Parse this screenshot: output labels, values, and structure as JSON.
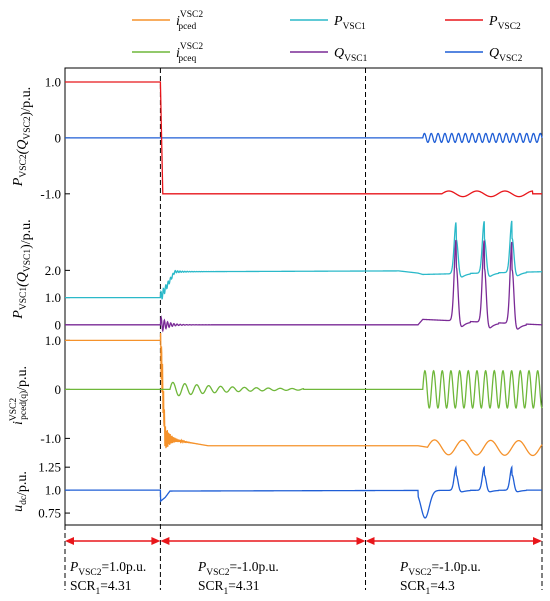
{
  "chart_data": {
    "type": "line",
    "legend": {
      "placement": "top",
      "entries": [
        {
          "key": "ipced",
          "main": "i",
          "sub": "pced",
          "sup": "VSC2",
          "color": "#F5922B"
        },
        {
          "key": "pvsc1",
          "main": "P",
          "sub": "VSC1",
          "sup": "",
          "color": "#2BB9C9"
        },
        {
          "key": "pvsc2",
          "main": "P",
          "sub": "VSC2",
          "sup": "",
          "color": "#E8161B"
        },
        {
          "key": "ipceq",
          "main": "i",
          "sub": "pceq",
          "sup": "VSC2",
          "color": "#6FB73A"
        },
        {
          "key": "qvsc1",
          "main": "Q",
          "sub": "VSC1",
          "sup": "",
          "color": "#7A2A96"
        },
        {
          "key": "qvsc2",
          "main": "Q",
          "sub": "VSC2",
          "sup": "",
          "color": "#1F5ED6"
        }
      ]
    },
    "x": {
      "range": [
        0,
        1
      ],
      "grid": false,
      "event_lines": [
        0.2,
        0.63
      ]
    },
    "panels": [
      {
        "id": "p1",
        "ylabel": {
          "parts": [
            [
              "P",
              "VSC2"
            ],
            [
              "(Q",
              "VSC2"
            ],
            [
              ")/p.u.",
              ""
            ]
          ]
        },
        "ylim": [
          -1.2,
          1.25
        ],
        "ticks": [
          {
            "v": 1.0,
            "label": "1.0"
          },
          {
            "v": 0.0,
            "label": "0"
          },
          {
            "v": -1.0,
            "label": "-1.0"
          }
        ],
        "series": [
          {
            "key": "qvsc2",
            "base": [
              [
                0,
                0
              ],
              [
                0.2,
                0
              ],
              [
                1,
                0
              ]
            ],
            "transients": [
              {
                "t": 0.2,
                "amp": 0.85,
                "decay": 0.012,
                "freq": 900
              }
            ],
            "periodic": {
              "t0": 0.75,
              "t1": 1.0,
              "amp": 0.08,
              "freq": 70
            }
          },
          {
            "key": "pvsc2",
            "base": [
              [
                0,
                1
              ],
              [
                0.2,
                1
              ],
              [
                0.205,
                -1
              ],
              [
                1,
                -1
              ]
            ],
            "transients": [
              {
                "t": 0.2,
                "amp": 0.9,
                "decay": 0.01,
                "freq": 900
              }
            ],
            "periodic": {
              "t0": 0.79,
              "t1": 0.98,
              "amp": 0.05,
              "freq": 17
            }
          }
        ]
      },
      {
        "id": "p2",
        "ylabel": {
          "parts": [
            [
              "P",
              "VSC1"
            ],
            [
              "(Q",
              "VSC1"
            ],
            [
              ")/p.u.",
              ""
            ]
          ]
        },
        "ylim": [
          -0.3,
          4.4
        ],
        "ticks": [
          {
            "v": 2.0,
            "label": "2.0"
          },
          {
            "v": 1.0,
            "label": "1.0"
          },
          {
            "v": 0.0,
            "label": "0"
          }
        ],
        "series": [
          {
            "key": "pvsc1",
            "base": [
              [
                0,
                1
              ],
              [
                0.2,
                1
              ],
              [
                0.23,
                1.95
              ],
              [
                0.7,
                1.98
              ],
              [
                0.74,
                1.9
              ],
              [
                0.75,
                1.85
              ],
              [
                1,
                1.95
              ]
            ],
            "spikes": [
              {
                "t": 0.82,
                "h": 1.9
              },
              {
                "t": 0.879,
                "h": 1.9
              },
              {
                "t": 0.937,
                "h": 1.9
              }
            ],
            "transients": [
              {
                "t": 0.2,
                "amp": 0.2,
                "decay": 0.02,
                "freq": 200
              }
            ]
          },
          {
            "key": "qvsc1",
            "base": [
              [
                0,
                0
              ],
              [
                0.2,
                0
              ],
              [
                0.74,
                0
              ],
              [
                0.75,
                0.2
              ],
              [
                1,
                0
              ]
            ],
            "spikes": [
              {
                "t": 0.82,
                "h": 3.0
              },
              {
                "t": 0.879,
                "h": 3.0
              },
              {
                "t": 0.937,
                "h": 3.0
              }
            ],
            "transients": [
              {
                "t": 0.2,
                "amp": 0.3,
                "decay": 0.015,
                "freq": 150
              }
            ]
          }
        ]
      },
      {
        "id": "p3",
        "ylabel": {
          "parts": [
            [
              "i",
              "pced(q)",
              "VSC2"
            ],
            [
              "/p.u.",
              ""
            ]
          ]
        },
        "ylim": [
          -1.4,
          1.15
        ],
        "ticks": [
          {
            "v": 1.0,
            "label": "1.0"
          },
          {
            "v": 0.0,
            "label": "0"
          },
          {
            "v": -1.0,
            "label": "-1.0"
          }
        ],
        "series": [
          {
            "key": "ipced",
            "base": [
              [
                0,
                1
              ],
              [
                0.2,
                1
              ],
              [
                0.21,
                -1.0
              ],
              [
                0.3,
                -1.15
              ],
              [
                0.74,
                -1.15
              ],
              [
                0.76,
                -1.18
              ],
              [
                1,
                -1.2
              ]
            ],
            "transients": [
              {
                "t": 0.2,
                "amp": 0.6,
                "decay": 0.012,
                "freq": 500
              }
            ],
            "periodic": {
              "t0": 0.76,
              "t1": 1.0,
              "amp": 0.15,
              "freq": 17
            }
          },
          {
            "key": "ipceq",
            "base": [
              [
                0,
                0
              ],
              [
                1,
                0
              ]
            ],
            "transients": [
              {
                "t": 0.2,
                "amp": 1.0,
                "decay": 0.012,
                "freq": 900
              }
            ],
            "periodic": {
              "t0": 0.75,
              "t1": 1.0,
              "amp": 0.38,
              "freq": 55
            },
            "wave": {
              "t0": 0.22,
              "t1": 0.5,
              "amp": 0.15,
              "freq": 40
            }
          }
        ]
      },
      {
        "id": "p4",
        "ylabel": {
          "parts": [
            [
              "u",
              "dc"
            ],
            [
              "/p.u.",
              ""
            ]
          ]
        },
        "ylim": [
          0.62,
          1.35
        ],
        "ticks": [
          {
            "v": 1.25,
            "label": "1.25"
          },
          {
            "v": 1.0,
            "label": "1.0"
          },
          {
            "v": 0.75,
            "label": "0.75"
          }
        ],
        "series": [
          {
            "key": "qvsc2",
            "base": [
              [
                0,
                1
              ],
              [
                0.2,
                1
              ],
              [
                0.2005,
                0.88
              ],
              [
                0.21,
                0.92
              ],
              [
                0.22,
                0.99
              ],
              [
                1,
                1
              ]
            ],
            "spikes": [
              {
                "t": 0.82,
                "h": 0.25
              },
              {
                "t": 0.879,
                "h": 0.25
              },
              {
                "t": 0.937,
                "h": 0.25
              }
            ],
            "dips": [
              {
                "t": 0.75,
                "h": -0.3
              }
            ]
          }
        ]
      }
    ],
    "annotations": [
      {
        "id": "a1",
        "label_main": "P",
        "label_sub": "VSC2",
        "label_rest": "=1.0p.u.",
        "scr": "SCR",
        "scr_sub": "1",
        "scr_rest": "=4.31"
      },
      {
        "id": "a2",
        "label_main": "P",
        "label_sub": "VSC2",
        "label_rest": "=-1.0p.u.",
        "scr": "SCR",
        "scr_sub": "1",
        "scr_rest": "=4.31"
      },
      {
        "id": "a3",
        "label_main": "P",
        "label_sub": "VSC2",
        "label_rest": "=-1.0p.u.",
        "scr": "SCR",
        "scr_sub": "1",
        "scr_rest": "=4.3"
      }
    ]
  }
}
